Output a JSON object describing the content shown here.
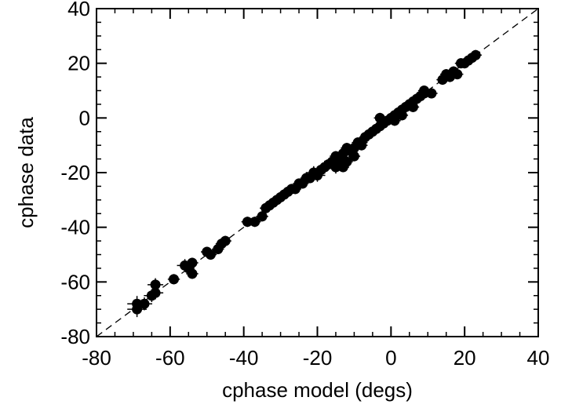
{
  "chart_data": {
    "type": "scatter",
    "title": "",
    "xlabel": "cphase model (degs)",
    "ylabel": "cphase data",
    "xlim": [
      -80,
      40
    ],
    "ylim": [
      -80,
      40
    ],
    "xticks": [
      -80,
      -60,
      -40,
      -20,
      0,
      20,
      40
    ],
    "yticks": [
      -80,
      -60,
      -40,
      -20,
      0,
      20,
      40
    ],
    "xtick_labels": [
      "-80",
      "-60",
      "-40",
      "-20",
      "0",
      "20",
      "40"
    ],
    "ytick_labels": [
      "-80",
      "-60",
      "-40",
      "-20",
      "0",
      "20",
      "40"
    ],
    "reference_line": {
      "style": "dashed",
      "from": [
        -80,
        -80
      ],
      "to": [
        40,
        40
      ]
    },
    "grid": false,
    "marker_color": "#000000",
    "points": [
      {
        "x": -69,
        "y": -70,
        "err": 2
      },
      {
        "x": -69,
        "y": -68,
        "err": 2
      },
      {
        "x": -67,
        "y": -68,
        "err": 1.5
      },
      {
        "x": -65,
        "y": -65,
        "err": 1.5
      },
      {
        "x": -64,
        "y": -64,
        "err": 1.5
      },
      {
        "x": -64,
        "y": -61,
        "err": 1.5
      },
      {
        "x": -59,
        "y": -59,
        "err": 1
      },
      {
        "x": -56,
        "y": -54,
        "err": 1.5
      },
      {
        "x": -54,
        "y": -53,
        "err": 1
      },
      {
        "x": -54,
        "y": -57,
        "err": 1
      },
      {
        "x": -55,
        "y": -55,
        "err": 1
      },
      {
        "x": -50,
        "y": -49,
        "err": 1
      },
      {
        "x": -49,
        "y": -50,
        "err": 1
      },
      {
        "x": -47,
        "y": -48,
        "err": 1
      },
      {
        "x": -46,
        "y": -46,
        "err": 1
      },
      {
        "x": -45,
        "y": -45,
        "err": 1
      },
      {
        "x": -39,
        "y": -38,
        "err": 1
      },
      {
        "x": -37,
        "y": -38,
        "err": 1
      },
      {
        "x": -35,
        "y": -36,
        "err": 1
      },
      {
        "x": -34,
        "y": -33,
        "err": 1
      },
      {
        "x": -33,
        "y": -32,
        "err": 1
      },
      {
        "x": -32,
        "y": -31,
        "err": 1
      },
      {
        "x": -31,
        "y": -30,
        "err": 1
      },
      {
        "x": -30,
        "y": -29,
        "err": 1
      },
      {
        "x": -29,
        "y": -28,
        "err": 1
      },
      {
        "x": -28,
        "y": -27,
        "err": 1
      },
      {
        "x": -27,
        "y": -26,
        "err": 1
      },
      {
        "x": -26,
        "y": -26,
        "err": 1
      },
      {
        "x": -25,
        "y": -24,
        "err": 1
      },
      {
        "x": -24,
        "y": -24,
        "err": 1
      },
      {
        "x": -23,
        "y": -22,
        "err": 1
      },
      {
        "x": -22,
        "y": -22,
        "err": 1
      },
      {
        "x": -21,
        "y": -20,
        "err": 1.5
      },
      {
        "x": -20,
        "y": -21,
        "err": 1.5
      },
      {
        "x": -19,
        "y": -19,
        "err": 1
      },
      {
        "x": -18,
        "y": -18,
        "err": 1.5
      },
      {
        "x": -17,
        "y": -17,
        "err": 1
      },
      {
        "x": -16,
        "y": -16,
        "err": 1.5
      },
      {
        "x": -15,
        "y": -14,
        "err": 1
      },
      {
        "x": -15,
        "y": -18,
        "err": 1.5
      },
      {
        "x": -14,
        "y": -15,
        "err": 1
      },
      {
        "x": -13,
        "y": -13,
        "err": 1
      },
      {
        "x": -13,
        "y": -18,
        "err": 1
      },
      {
        "x": -12,
        "y": -16,
        "err": 1
      },
      {
        "x": -12,
        "y": -11,
        "err": 1
      },
      {
        "x": -11,
        "y": -12,
        "err": 1
      },
      {
        "x": -10,
        "y": -11,
        "err": 1
      },
      {
        "x": -10,
        "y": -14,
        "err": 1
      },
      {
        "x": -9,
        "y": -9,
        "err": 1
      },
      {
        "x": -8,
        "y": -9,
        "err": 1
      },
      {
        "x": -8,
        "y": -10,
        "err": 1
      },
      {
        "x": -7,
        "y": -7,
        "err": 1
      },
      {
        "x": -6,
        "y": -6,
        "err": 1
      },
      {
        "x": -5,
        "y": -5,
        "err": 1
      },
      {
        "x": -4,
        "y": -4,
        "err": 1
      },
      {
        "x": -3,
        "y": -3,
        "err": 1
      },
      {
        "x": -3,
        "y": 0,
        "err": 1
      },
      {
        "x": -2,
        "y": -2,
        "err": 1
      },
      {
        "x": -1,
        "y": -1,
        "err": 1
      },
      {
        "x": 0,
        "y": 0,
        "err": 1
      },
      {
        "x": 1,
        "y": 1,
        "err": 1
      },
      {
        "x": 1,
        "y": -1,
        "err": 1
      },
      {
        "x": 2,
        "y": 2,
        "err": 1
      },
      {
        "x": 3,
        "y": 3,
        "err": 1
      },
      {
        "x": 3,
        "y": 1,
        "err": 1
      },
      {
        "x": 4,
        "y": 4,
        "err": 1
      },
      {
        "x": 5,
        "y": 5,
        "err": 1
      },
      {
        "x": 6,
        "y": 6,
        "err": 1
      },
      {
        "x": 6,
        "y": 4,
        "err": 1
      },
      {
        "x": 7,
        "y": 7,
        "err": 1
      },
      {
        "x": 8,
        "y": 8,
        "err": 1
      },
      {
        "x": 9,
        "y": 9,
        "err": 1
      },
      {
        "x": 9,
        "y": 10,
        "err": 1
      },
      {
        "x": 11,
        "y": 9,
        "err": 1
      },
      {
        "x": 14,
        "y": 14,
        "err": 1
      },
      {
        "x": 15,
        "y": 16,
        "err": 1
      },
      {
        "x": 16,
        "y": 15,
        "err": 1
      },
      {
        "x": 17,
        "y": 17,
        "err": 1
      },
      {
        "x": 18,
        "y": 16,
        "err": 1
      },
      {
        "x": 19,
        "y": 20,
        "err": 1
      },
      {
        "x": 20,
        "y": 20,
        "err": 1
      },
      {
        "x": 21,
        "y": 21,
        "err": 1
      },
      {
        "x": 22,
        "y": 22,
        "err": 1
      },
      {
        "x": 23,
        "y": 23,
        "err": 1
      }
    ]
  }
}
